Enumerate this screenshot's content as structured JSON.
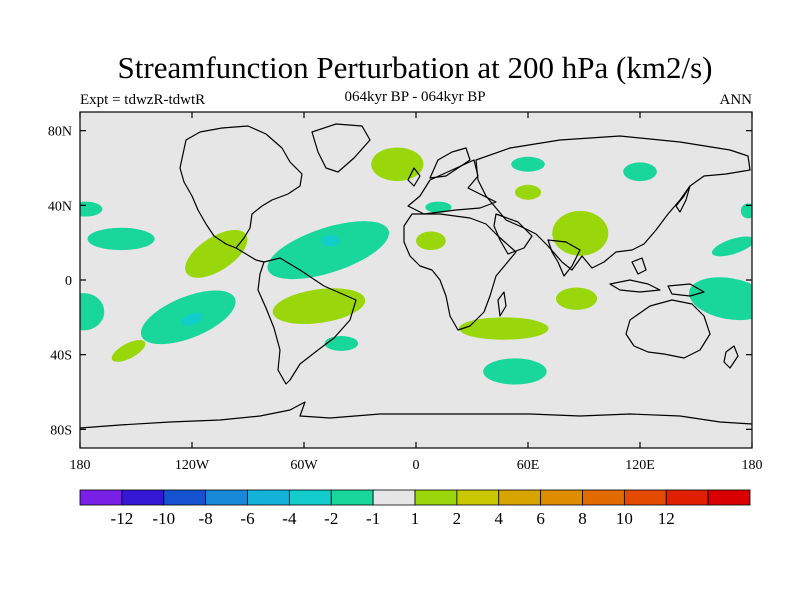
{
  "header": {
    "title": "Streamfunction Perturbation at 200 hPa (km2/s)",
    "left_label": "Expt = tdwzR-tdwtR",
    "center_label": "064kyr BP - 064kyr BP",
    "right_label": "ANN"
  },
  "axes": {
    "lon_ticks": [
      {
        "value": -180,
        "label": "180"
      },
      {
        "value": -120,
        "label": "120W"
      },
      {
        "value": -60,
        "label": "60W"
      },
      {
        "value": 0,
        "label": "0"
      },
      {
        "value": 60,
        "label": "60E"
      },
      {
        "value": 120,
        "label": "120E"
      },
      {
        "value": 180,
        "label": "180"
      }
    ],
    "lat_ticks": [
      {
        "value": 80,
        "label": "80N"
      },
      {
        "value": 40,
        "label": "40N"
      },
      {
        "value": 0,
        "label": "0"
      },
      {
        "value": -40,
        "label": "40S"
      },
      {
        "value": -80,
        "label": "80S"
      }
    ],
    "lon_range": [
      -180,
      180
    ],
    "lat_range": [
      -90,
      90
    ]
  },
  "colorbar": {
    "colors": [
      "#7a1fe6",
      "#3418d6",
      "#1452d0",
      "#1789d8",
      "#13b2d8",
      "#13cdcc",
      "#19d79a",
      "#e6e6e6",
      "#99d60a",
      "#c8c800",
      "#d8a400",
      "#e08c00",
      "#e26a00",
      "#e24a00",
      "#e02000",
      "#d80000"
    ],
    "labels": [
      "-12",
      "-10",
      "-8",
      "-6",
      "-4",
      "-2",
      "-1",
      "1",
      "2",
      "4",
      "6",
      "8",
      "10",
      "12"
    ]
  },
  "colors": {
    "background": "#e6e6e6",
    "negative_1": "#19d79a",
    "negative_2": "#13cdcc",
    "positive_1": "#99d60a"
  },
  "field_regions": [
    {
      "class": "positive_1",
      "lon": -10,
      "lat": 62,
      "rlon": 14,
      "rlat": 9,
      "rot": 0
    },
    {
      "class": "negative_1",
      "lon": 60,
      "lat": 62,
      "rlon": 9,
      "rlat": 4,
      "rot": 0
    },
    {
      "class": "negative_1",
      "lon": 120,
      "lat": 58,
      "rlon": 9,
      "rlat": 5,
      "rot": 0
    },
    {
      "class": "negative_1",
      "lon": 12,
      "lat": 39,
      "rlon": 7,
      "rlat": 3,
      "rot": 0
    },
    {
      "class": "positive_1",
      "lon": 60,
      "lat": 47,
      "rlon": 7,
      "rlat": 4,
      "rot": 0
    },
    {
      "class": "positive_1",
      "lon": 88,
      "lat": 25,
      "rlon": 15,
      "rlat": 12,
      "rot": 0
    },
    {
      "class": "negative_1",
      "lon": 178,
      "lat": 37,
      "rlon": 4,
      "rlat": 4,
      "rot": 0
    },
    {
      "class": "negative_1",
      "lon": -177,
      "lat": 38,
      "rlon": 9,
      "rlat": 4,
      "rot": 0
    },
    {
      "class": "negative_1",
      "lon": 170,
      "lat": 18,
      "rlon": 12,
      "rlat": 4,
      "rot": -18
    },
    {
      "class": "negative_1",
      "lon": -158,
      "lat": 22,
      "rlon": 18,
      "rlat": 6,
      "rot": 0
    },
    {
      "class": "positive_1",
      "lon": -107,
      "lat": 14,
      "rlon": 19,
      "rlat": 9,
      "rot": -33
    },
    {
      "class": "negative_1",
      "lon": -47,
      "lat": 16,
      "rlon": 34,
      "rlat": 12,
      "rot": -18
    },
    {
      "class": "negative_2",
      "lon": -46,
      "lat": 21,
      "rlon": 5,
      "rlat": 3,
      "rot": 0
    },
    {
      "class": "positive_1",
      "lon": 8,
      "lat": 21,
      "rlon": 8,
      "rlat": 5,
      "rot": 0
    },
    {
      "class": "negative_1",
      "lon": -178,
      "lat": -17,
      "rlon": 11,
      "rlat": 10,
      "rot": 0
    },
    {
      "class": "negative_1",
      "lon": -122,
      "lat": -20,
      "rlon": 27,
      "rlat": 11,
      "rot": -22
    },
    {
      "class": "negative_2",
      "lon": -120,
      "lat": -21,
      "rlon": 6,
      "rlat": 3,
      "rot": -20
    },
    {
      "class": "positive_1",
      "lon": -52,
      "lat": -14,
      "rlon": 25,
      "rlat": 9,
      "rot": -8
    },
    {
      "class": "negative_1",
      "lon": -40,
      "lat": -34,
      "rlon": 9,
      "rlat": 4,
      "rot": 0
    },
    {
      "class": "positive_1",
      "lon": -154,
      "lat": -38,
      "rlon": 10,
      "rlat": 4,
      "rot": -28
    },
    {
      "class": "positive_1",
      "lon": 86,
      "lat": -10,
      "rlon": 11,
      "rlat": 6,
      "rot": 0
    },
    {
      "class": "positive_1",
      "lon": 47,
      "lat": -26,
      "rlon": 24,
      "rlat": 6,
      "rot": 0
    },
    {
      "class": "negative_1",
      "lon": 53,
      "lat": -49,
      "rlon": 17,
      "rlat": 7,
      "rot": 0
    },
    {
      "class": "negative_1",
      "lon": 168,
      "lat": -10,
      "rlon": 22,
      "rlat": 11,
      "rot": 10
    }
  ]
}
